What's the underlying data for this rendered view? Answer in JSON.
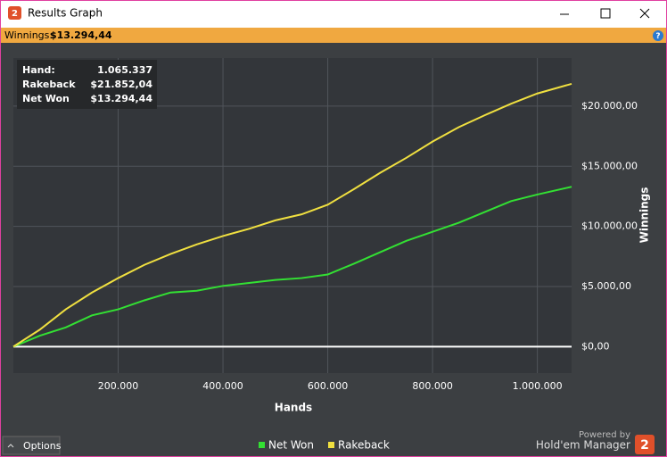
{
  "window": {
    "title": "Results Graph",
    "app_icon": "2",
    "summary_label": "Winnings:",
    "summary_value": "$13.294,44",
    "help": "?"
  },
  "tooltip": {
    "rows": [
      [
        "Hand:",
        "1.065.337"
      ],
      [
        "Rakeback",
        "$21.852,04"
      ],
      [
        "Net Won",
        "$13.294,44"
      ]
    ]
  },
  "chart_data": {
    "type": "line",
    "x_label": "Hands",
    "y_label": "Winnings",
    "xlim": [
      0,
      1065337
    ],
    "ylim": [
      -2200,
      24000
    ],
    "xticks": [
      {
        "value": 200000,
        "label": "200.000"
      },
      {
        "value": 400000,
        "label": "400.000"
      },
      {
        "value": 600000,
        "label": "600.000"
      },
      {
        "value": 800000,
        "label": "800.000"
      },
      {
        "value": 1000000,
        "label": "1.000.000"
      }
    ],
    "yticks": [
      {
        "value": 0,
        "label": "$0,00"
      },
      {
        "value": 5000,
        "label": "$5.000,00"
      },
      {
        "value": 10000,
        "label": "$10.000,00"
      },
      {
        "value": 15000,
        "label": "$15.000,00"
      },
      {
        "value": 20000,
        "label": "$20.000,00"
      }
    ],
    "grid": true,
    "x": [
      0,
      50000,
      100000,
      150000,
      200000,
      250000,
      300000,
      350000,
      400000,
      450000,
      500000,
      550000,
      600000,
      650000,
      700000,
      750000,
      800000,
      850000,
      900000,
      950000,
      1000000,
      1065337
    ],
    "series": [
      {
        "name": "Net Won",
        "color": "#33e033",
        "values": [
          0,
          900,
          1600,
          2600,
          3100,
          3850,
          4500,
          4650,
          5050,
          5300,
          5550,
          5700,
          6000,
          6900,
          7850,
          8800,
          9550,
          10300,
          11200,
          12100,
          12650,
          13294.44
        ]
      },
      {
        "name": "Rakeback",
        "color": "#f0e040",
        "values": [
          0,
          1400,
          3100,
          4500,
          5700,
          6800,
          7700,
          8500,
          9200,
          9800,
          10500,
          11000,
          11800,
          13100,
          14450,
          15700,
          17050,
          18250,
          19250,
          20200,
          21050,
          21852.04
        ]
      }
    ]
  },
  "footer": {
    "options": "Options",
    "powered_by": "Powered by",
    "brand": "Hold'em Manager",
    "logo": "2"
  }
}
